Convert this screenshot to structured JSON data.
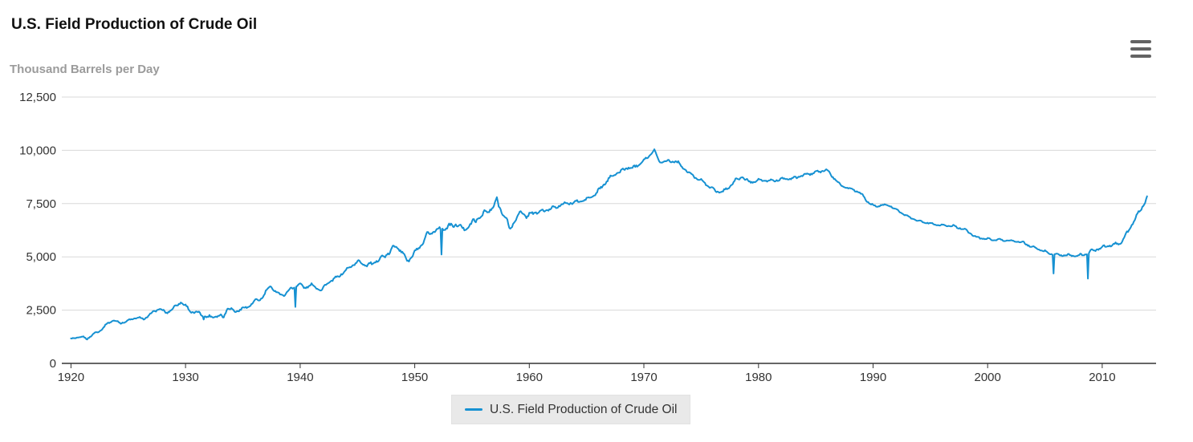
{
  "chart": {
    "title": "U.S. Field Production of Crude Oil",
    "subtitle": "Thousand Barrels per Day",
    "legend_label": "U.S. Field Production of Crude Oil",
    "menu_icon": "hamburger-menu-icon"
  },
  "colors": {
    "series": "#1691d2",
    "title": "#111111",
    "subtitle": "#9b9b9b",
    "tick_label": "#333333",
    "gridline": "#d8d8d8",
    "axis_line": "#333333",
    "legend_bg": "#e9e9e9",
    "legend_border": "#e2e2e2",
    "menu_icon_color": "#636363"
  },
  "chart_data": {
    "type": "line",
    "title": "U.S. Field Production of Crude Oil",
    "ylabel": "Thousand Barrels per Day",
    "xlabel": "",
    "grid": "horizontal-only",
    "legend_position": "bottom-center",
    "xlim": [
      1919.2,
      2014.7
    ],
    "ylim": [
      0,
      12500
    ],
    "xticks": [
      1920,
      1930,
      1940,
      1950,
      1960,
      1970,
      1980,
      1990,
      2000,
      2010
    ],
    "yticks": [
      0,
      2500,
      5000,
      7500,
      10000,
      12500
    ],
    "ytick_labels": [
      "0",
      "2,500",
      "5,000",
      "7,500",
      "10,000",
      "12,500"
    ],
    "series": [
      {
        "name": "U.S. Field Production of Crude Oil",
        "color": "#1691d2",
        "unit": "thousand barrels per day",
        "resolution": "monthly",
        "start_year": 1920,
        "months": 1128,
        "anchors": [
          [
            1920.0,
            1140
          ],
          [
            1920.5,
            1210
          ],
          [
            1921.0,
            1240
          ],
          [
            1921.4,
            1150
          ],
          [
            1922.0,
            1390
          ],
          [
            1922.6,
            1560
          ],
          [
            1923.2,
            1880
          ],
          [
            1923.7,
            2030
          ],
          [
            1924.3,
            1890
          ],
          [
            1925.0,
            2000
          ],
          [
            1925.7,
            2150
          ],
          [
            1926.4,
            2080
          ],
          [
            1927.1,
            2380
          ],
          [
            1927.7,
            2580
          ],
          [
            1928.3,
            2360
          ],
          [
            1929.0,
            2620
          ],
          [
            1929.6,
            2890
          ],
          [
            1930.1,
            2640
          ],
          [
            1930.5,
            2420
          ],
          [
            1931.2,
            2350
          ],
          [
            1932.0,
            2150
          ],
          [
            1932.7,
            2250
          ],
          [
            1933.3,
            2180
          ],
          [
            1933.7,
            2650
          ],
          [
            1934.2,
            2430
          ],
          [
            1934.8,
            2530
          ],
          [
            1935.4,
            2650
          ],
          [
            1936.0,
            2880
          ],
          [
            1936.7,
            3090
          ],
          [
            1937.4,
            3640
          ],
          [
            1938.1,
            3250
          ],
          [
            1938.6,
            3220
          ],
          [
            1939.2,
            3500
          ],
          [
            1939.9,
            3720
          ],
          [
            1940.4,
            3560
          ],
          [
            1941.0,
            3680
          ],
          [
            1941.9,
            3430
          ],
          [
            1942.3,
            3740
          ],
          [
            1943.0,
            3960
          ],
          [
            1943.8,
            4270
          ],
          [
            1944.5,
            4600
          ],
          [
            1945.2,
            4780
          ],
          [
            1945.8,
            4600
          ],
          [
            1946.3,
            4670
          ],
          [
            1947.0,
            4920
          ],
          [
            1947.8,
            5200
          ],
          [
            1948.4,
            5580
          ],
          [
            1949.0,
            5100
          ],
          [
            1949.4,
            4820
          ],
          [
            1950.0,
            5170
          ],
          [
            1950.7,
            5630
          ],
          [
            1951.2,
            6100
          ],
          [
            1951.8,
            6240
          ],
          [
            1952.2,
            6300
          ],
          [
            1953.0,
            6410
          ],
          [
            1953.7,
            6540
          ],
          [
            1954.2,
            6280
          ],
          [
            1955.0,
            6570
          ],
          [
            1955.7,
            6900
          ],
          [
            1956.3,
            7110
          ],
          [
            1956.9,
            7350
          ],
          [
            1957.17,
            7650
          ],
          [
            1957.7,
            7050
          ],
          [
            1958.3,
            6320
          ],
          [
            1958.8,
            6750
          ],
          [
            1959.3,
            7120
          ],
          [
            1959.8,
            6880
          ],
          [
            1960.3,
            7080
          ],
          [
            1961.0,
            7110
          ],
          [
            1962.0,
            7290
          ],
          [
            1963.0,
            7480
          ],
          [
            1964.0,
            7560
          ],
          [
            1965.0,
            7690
          ],
          [
            1965.8,
            7950
          ],
          [
            1966.5,
            8400
          ],
          [
            1967.3,
            8850
          ],
          [
            1968.0,
            9000
          ],
          [
            1968.5,
            9200
          ],
          [
            1969.0,
            9150
          ],
          [
            1969.5,
            9350
          ],
          [
            1970.2,
            9600
          ],
          [
            1970.9,
            10000
          ],
          [
            1971.3,
            9500
          ],
          [
            1972.0,
            9480
          ],
          [
            1972.8,
            9500
          ],
          [
            1973.3,
            9250
          ],
          [
            1974.0,
            8900
          ],
          [
            1974.8,
            8650
          ],
          [
            1975.5,
            8400
          ],
          [
            1976.2,
            8100
          ],
          [
            1976.8,
            8050
          ],
          [
            1977.3,
            8200
          ],
          [
            1978.0,
            8600
          ],
          [
            1978.6,
            8750
          ],
          [
            1979.2,
            8500
          ],
          [
            1980.0,
            8600
          ],
          [
            1981.0,
            8560
          ],
          [
            1982.0,
            8640
          ],
          [
            1983.0,
            8680
          ],
          [
            1984.0,
            8850
          ],
          [
            1985.0,
            8950
          ],
          [
            1985.9,
            9100
          ],
          [
            1986.5,
            8750
          ],
          [
            1987.2,
            8350
          ],
          [
            1988.0,
            8200
          ],
          [
            1988.8,
            8050
          ],
          [
            1989.5,
            7600
          ],
          [
            1990.2,
            7350
          ],
          [
            1990.8,
            7450
          ],
          [
            1991.5,
            7400
          ],
          [
            1992.2,
            7150
          ],
          [
            1993.0,
            6900
          ],
          [
            1994.0,
            6680
          ],
          [
            1995.0,
            6570
          ],
          [
            1996.0,
            6480
          ],
          [
            1997.0,
            6450
          ],
          [
            1998.0,
            6280
          ],
          [
            1999.0,
            5920
          ],
          [
            2000.0,
            5830
          ],
          [
            2001.0,
            5800
          ],
          [
            2002.0,
            5760
          ],
          [
            2003.0,
            5690
          ],
          [
            2004.0,
            5440
          ],
          [
            2005.0,
            5250
          ],
          [
            2005.5,
            5150
          ],
          [
            2006.0,
            5100
          ],
          [
            2007.0,
            5070
          ],
          [
            2008.0,
            5050
          ],
          [
            2008.4,
            5100
          ],
          [
            2009.0,
            5250
          ],
          [
            2009.7,
            5400
          ],
          [
            2010.3,
            5500
          ],
          [
            2011.0,
            5560
          ],
          [
            2011.7,
            5700
          ],
          [
            2012.2,
            6150
          ],
          [
            2012.7,
            6600
          ],
          [
            2013.1,
            7000
          ],
          [
            2013.5,
            7350
          ],
          [
            2013.75,
            7600
          ],
          [
            2013.92,
            7850
          ]
        ],
        "single_month_events": [
          [
            1931.58,
            2060
          ],
          [
            1939.58,
            2650
          ],
          [
            1952.37,
            5110
          ],
          [
            1970.92,
            10050
          ],
          [
            2005.71,
            4220
          ],
          [
            2008.71,
            3980
          ]
        ],
        "noise_amp_anchors": [
          [
            1920,
            25
          ],
          [
            1928,
            50
          ],
          [
            1932,
            70
          ],
          [
            1936,
            70
          ],
          [
            1940,
            60
          ],
          [
            1944,
            50
          ],
          [
            1948,
            90
          ],
          [
            1951,
            110
          ],
          [
            1954,
            100
          ],
          [
            1957,
            120
          ],
          [
            1960,
            90
          ],
          [
            1964,
            60
          ],
          [
            1967,
            70
          ],
          [
            1971,
            70
          ],
          [
            1975,
            55
          ],
          [
            1980,
            55
          ],
          [
            1985,
            60
          ],
          [
            1989,
            45
          ],
          [
            1994,
            35
          ],
          [
            2000,
            40
          ],
          [
            2004,
            45
          ],
          [
            2008,
            55
          ],
          [
            2011,
            65
          ],
          [
            2014,
            60
          ]
        ]
      }
    ]
  }
}
